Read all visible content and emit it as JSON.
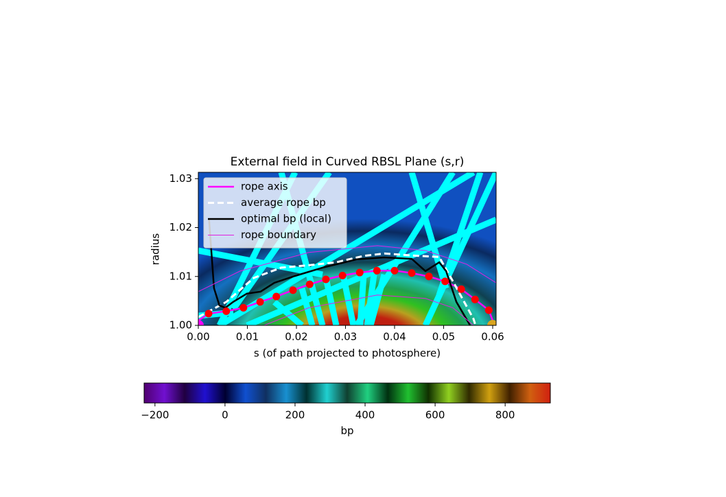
{
  "chart_data": {
    "type": "line",
    "title": "External field in Curved RBSL Plane (s,r)",
    "x_label": "s (of path projected to photosphere)",
    "y_label": "radius",
    "xlim": [
      0,
      0.0607
    ],
    "ylim": [
      1.0,
      1.0313
    ],
    "xticks": [
      {
        "value": 0,
        "label": "0.00"
      },
      {
        "value": 0.01,
        "label": "0.01"
      },
      {
        "value": 0.02,
        "label": "0.02"
      },
      {
        "value": 0.03,
        "label": "0.03"
      },
      {
        "value": 0.04,
        "label": "0.04"
      },
      {
        "value": 0.05,
        "label": "0.05"
      },
      {
        "value": 0.06,
        "label": "0.06"
      }
    ],
    "yticks": [
      {
        "value": 1.0,
        "label": "1.00"
      },
      {
        "value": 1.01,
        "label": "1.01"
      },
      {
        "value": 1.02,
        "label": "1.02"
      },
      {
        "value": 1.03,
        "label": "1.03"
      }
    ],
    "legend": "upper left",
    "series": [
      {
        "name": "rope axis",
        "color": "#ff00ff",
        "linestyle": "solid",
        "x": [
          0,
          0.0021,
          0.0057,
          0.0092,
          0.0126,
          0.0159,
          0.0193,
          0.0227,
          0.026,
          0.0294,
          0.0329,
          0.0364,
          0.04,
          0.0435,
          0.047,
          0.0503,
          0.0536,
          0.0564,
          0.0592,
          0.06
        ],
        "values": [
          1.001,
          1.0024,
          1.0029,
          1.0036,
          1.0048,
          1.0059,
          1.0072,
          1.0084,
          1.0094,
          1.0102,
          1.0108,
          1.0112,
          1.0112,
          1.0107,
          1.01,
          1.009,
          1.0074,
          1.0053,
          1.0031,
          1.001
        ]
      },
      {
        "name": "average rope bp",
        "color": "#ffffff",
        "linestyle": "dashed",
        "x": [
          0,
          0.0057,
          0.0113,
          0.0169,
          0.0225,
          0.0281,
          0.0337,
          0.0379,
          0.0435,
          0.0491,
          0.0519,
          0.0561,
          0.0565
        ],
        "values": [
          1.0017,
          1.0048,
          1.0097,
          1.0118,
          1.0123,
          1.0129,
          1.0142,
          1.0147,
          1.0143,
          1.014,
          1.009,
          1.0013,
          1.0
        ]
      },
      {
        "name": "optimal bp (local)",
        "color": "#000000",
        "linestyle": "solid",
        "x": [
          0.0022,
          0.0032,
          0.0043,
          0.0055,
          0.0071,
          0.0099,
          0.0127,
          0.0155,
          0.0197,
          0.0253,
          0.0323,
          0.0379,
          0.0435,
          0.0463,
          0.0491,
          0.0505,
          0.0526,
          0.0554
        ],
        "values": [
          1.0216,
          1.0076,
          1.0041,
          1.0036,
          1.0048,
          1.0065,
          1.0069,
          1.0087,
          1.0101,
          1.0118,
          1.0135,
          1.0139,
          1.0136,
          1.0111,
          1.0129,
          1.0111,
          1.0048,
          1.0
        ]
      },
      {
        "name": "rope boundary",
        "color": "#e020e0",
        "linestyle": "thin",
        "x": [
          0,
          0.0085,
          0.0225,
          0.0365,
          0.0463,
          0.0547,
          0.0607
        ],
        "values": [
          1.0069,
          1.0111,
          1.0149,
          1.0163,
          1.0153,
          1.0125,
          1.0087
        ]
      },
      {
        "color": "#e020e0",
        "linestyle": "thin",
        "x": [
          0.0134,
          0.0225,
          0.0365,
          0.0463,
          0.0519,
          0.0561
        ],
        "values": [
          1.0,
          1.0036,
          1.0062,
          1.0055,
          1.0036,
          1.0
        ]
      },
      {
        "color": "#ff0000",
        "marker": "o",
        "x": [
          0.0021,
          0.0057,
          0.0092,
          0.0126,
          0.0159,
          0.0193,
          0.0227,
          0.026,
          0.0294,
          0.0329,
          0.0364,
          0.04,
          0.0435,
          0.047,
          0.0503,
          0.0536,
          0.0564,
          0.0592
        ],
        "values": [
          1.0024,
          1.0029,
          1.0036,
          1.0048,
          1.0059,
          1.0072,
          1.0084,
          1.0094,
          1.0102,
          1.0108,
          1.0112,
          1.0112,
          1.0107,
          1.01,
          1.009,
          1.0074,
          1.0053,
          1.0031
        ]
      },
      {
        "color": "#ff00ff",
        "marker": "big",
        "x": [
          0
        ],
        "values": [
          1.0
        ]
      },
      {
        "color": "#daa520",
        "marker": "big",
        "x": [
          0.06
        ],
        "values": [
          1.0
        ]
      }
    ],
    "colorbar": {
      "label": "bp",
      "lim": [
        -231,
        929
      ],
      "ticks": [
        {
          "value": -200,
          "label": "−200"
        },
        0,
        200,
        400,
        600,
        800
      ]
    }
  }
}
